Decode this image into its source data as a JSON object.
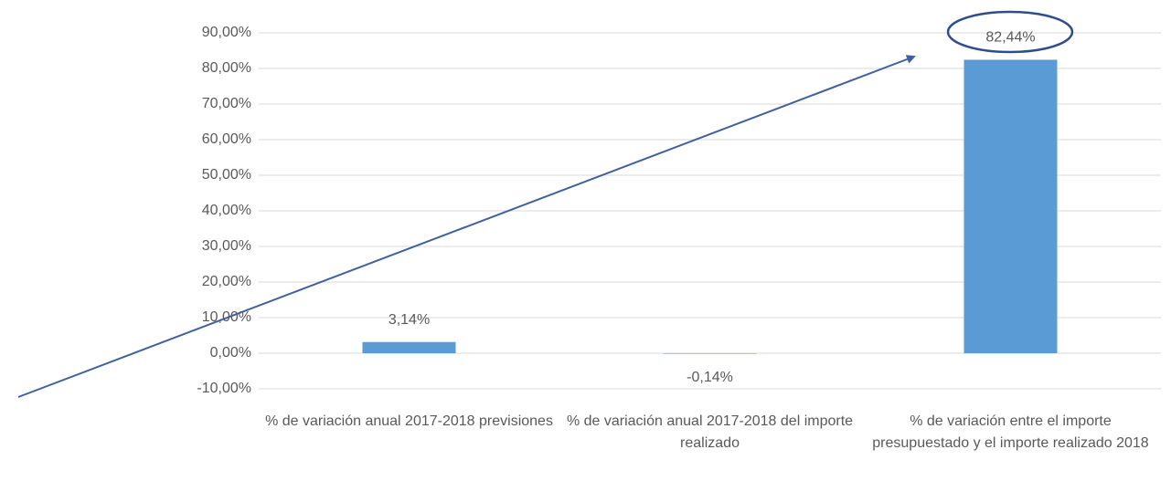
{
  "chart_data": {
    "type": "bar",
    "categories": [
      "% de variación anual 2017-2018 previsiones",
      "% de variación anual 2017-2018 del importe realizado",
      "% de variación entre el importe presupuestado y el importe realizado 2018"
    ],
    "values": [
      3.14,
      -0.14,
      82.44
    ],
    "value_labels": [
      "3,14%",
      "-0,14%",
      "82,44%"
    ],
    "color": "#5b9bd5",
    "ylim": [
      -10,
      90
    ],
    "yticks": [
      {
        "value": -10,
        "label": "-10,00%"
      },
      {
        "value": 0,
        "label": "0,00%"
      },
      {
        "value": 10,
        "label": "10,00%"
      },
      {
        "value": 20,
        "label": "20,00%"
      },
      {
        "value": 30,
        "label": "30,00%"
      },
      {
        "value": 40,
        "label": "40,00%"
      },
      {
        "value": 50,
        "label": "50,00%"
      },
      {
        "value": 60,
        "label": "60,00%"
      },
      {
        "value": 70,
        "label": "70,00%"
      },
      {
        "value": 80,
        "label": "80,00%"
      },
      {
        "value": 90,
        "label": "90,00%"
      }
    ],
    "grid": true
  }
}
